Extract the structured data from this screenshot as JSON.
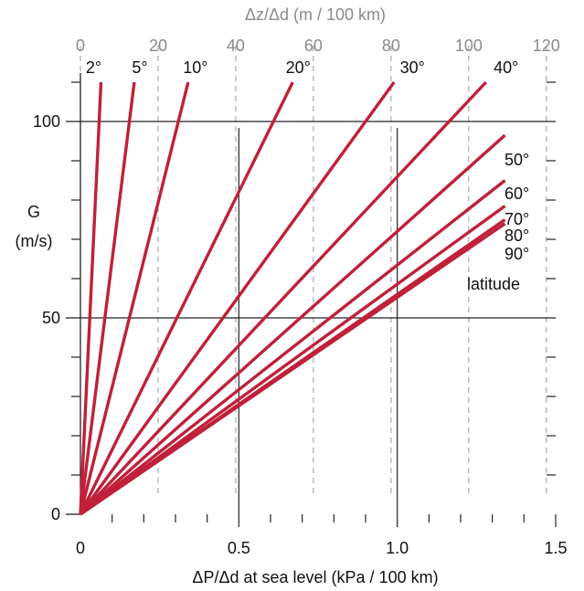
{
  "chart_data": {
    "type": "line",
    "xlabel": "ΔP/Δd at sea level  (kPa / 100 km)",
    "ylabel_lines": [
      "G",
      "(m/s)"
    ],
    "top_xlabel": "Δz/Δd  (m / 100 km)",
    "xlim": [
      0,
      1.5
    ],
    "ylim": [
      0,
      120
    ],
    "top_xlim": [
      0,
      122.4
    ],
    "x_ticks": [
      {
        "value": 0,
        "label": "0"
      },
      {
        "value": 0.5,
        "label": "0.5"
      },
      {
        "value": 1.0,
        "label": "1.0"
      },
      {
        "value": 1.5,
        "label": "1.5"
      }
    ],
    "y_ticks": [
      {
        "value": 0,
        "label": "0"
      },
      {
        "value": 50,
        "label": "50"
      },
      {
        "value": 100,
        "label": "100"
      }
    ],
    "top_ticks": [
      {
        "value": 0,
        "label": "0"
      },
      {
        "value": 20,
        "label": "20"
      },
      {
        "value": 40,
        "label": "40"
      },
      {
        "value": 60,
        "label": "60"
      },
      {
        "value": 80,
        "label": "80"
      },
      {
        "value": 100,
        "label": "100"
      },
      {
        "value": 120,
        "label": "120"
      }
    ],
    "gridlines_x": [
      0.5,
      1.0
    ],
    "gridlines_y": [
      50,
      100
    ],
    "series_color": "#c0203a",
    "series": [
      {
        "name": "2°",
        "points": [
          [
            0,
            0
          ],
          [
            0.065,
            110
          ]
        ]
      },
      {
        "name": "5°",
        "points": [
          [
            0,
            0
          ],
          [
            0.17,
            110
          ]
        ]
      },
      {
        "name": "10°",
        "points": [
          [
            0,
            0
          ],
          [
            0.34,
            110
          ]
        ]
      },
      {
        "name": "20°",
        "points": [
          [
            0,
            0
          ],
          [
            0.67,
            110
          ]
        ]
      },
      {
        "name": "30°",
        "points": [
          [
            0,
            0
          ],
          [
            0.99,
            110
          ]
        ]
      },
      {
        "name": "40°",
        "points": [
          [
            0,
            0
          ],
          [
            1.28,
            110
          ]
        ]
      },
      {
        "name": "50°",
        "points": [
          [
            0,
            0
          ],
          [
            1.34,
            96.5
          ]
        ]
      },
      {
        "name": "60°",
        "points": [
          [
            0,
            0
          ],
          [
            1.34,
            85
          ]
        ]
      },
      {
        "name": "70°",
        "points": [
          [
            0,
            0
          ],
          [
            1.34,
            78.5
          ]
        ]
      },
      {
        "name": "80°",
        "points": [
          [
            0,
            0
          ],
          [
            1.34,
            75
          ]
        ]
      },
      {
        "name": "90°",
        "points": [
          [
            0,
            0
          ],
          [
            1.34,
            74
          ]
        ]
      }
    ],
    "annotation": "latitude"
  }
}
